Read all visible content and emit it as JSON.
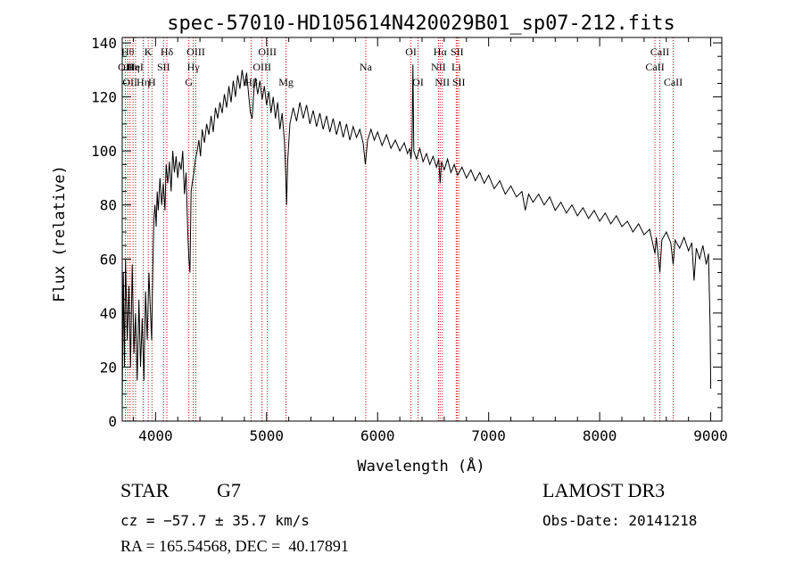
{
  "chart_data": {
    "type": "line",
    "title": "spec-57010-HD105614N420029B01_sp07-212.fits",
    "xlabel": "Wavelength (Å)",
    "ylabel": "Flux (relative)",
    "xlim": [
      3700,
      9100
    ],
    "ylim": [
      0,
      142
    ],
    "xticks": [
      4000,
      5000,
      6000,
      7000,
      8000,
      9000
    ],
    "yticks": [
      0,
      20,
      40,
      60,
      80,
      100,
      120,
      140
    ],
    "grid": false,
    "line_color": "#000000",
    "marker_color": "#cc0000",
    "series": [
      {
        "points": [
          [
            3700,
            5
          ],
          [
            3710,
            55
          ],
          [
            3720,
            20
          ],
          [
            3730,
            60
          ],
          [
            3745,
            30
          ],
          [
            3760,
            50
          ],
          [
            3775,
            20
          ],
          [
            3790,
            58
          ],
          [
            3805,
            25
          ],
          [
            3820,
            40
          ],
          [
            3835,
            15
          ],
          [
            3850,
            45
          ],
          [
            3865,
            20
          ],
          [
            3880,
            38
          ],
          [
            3895,
            15
          ],
          [
            3910,
            48
          ],
          [
            3925,
            30
          ],
          [
            3940,
            55
          ],
          [
            3955,
            40
          ],
          [
            3965,
            30
          ],
          [
            3975,
            55
          ],
          [
            3985,
            75
          ],
          [
            3995,
            80
          ],
          [
            4005,
            72
          ],
          [
            4015,
            85
          ],
          [
            4025,
            78
          ],
          [
            4040,
            90
          ],
          [
            4055,
            80
          ],
          [
            4070,
            88
          ],
          [
            4085,
            78
          ],
          [
            4095,
            95
          ],
          [
            4110,
            88
          ],
          [
            4125,
            96
          ],
          [
            4140,
            85
          ],
          [
            4155,
            100
          ],
          [
            4170,
            92
          ],
          [
            4185,
            98
          ],
          [
            4200,
            90
          ],
          [
            4215,
            96
          ],
          [
            4230,
            93
          ],
          [
            4245,
            100
          ],
          [
            4260,
            84
          ],
          [
            4275,
            92
          ],
          [
            4290,
            70
          ],
          [
            4300,
            60
          ],
          [
            4310,
            55
          ],
          [
            4320,
            85
          ],
          [
            4330,
            88
          ],
          [
            4345,
            92
          ],
          [
            4360,
            97
          ],
          [
            4375,
            100
          ],
          [
            4390,
            104
          ],
          [
            4405,
            98
          ],
          [
            4420,
            108
          ],
          [
            4440,
            103
          ],
          [
            4460,
            110
          ],
          [
            4480,
            106
          ],
          [
            4500,
            113
          ],
          [
            4520,
            107
          ],
          [
            4540,
            116
          ],
          [
            4560,
            112
          ],
          [
            4580,
            118
          ],
          [
            4600,
            114
          ],
          [
            4620,
            121
          ],
          [
            4640,
            116
          ],
          [
            4660,
            124
          ],
          [
            4680,
            118
          ],
          [
            4700,
            126
          ],
          [
            4720,
            120
          ],
          [
            4740,
            128
          ],
          [
            4760,
            123
          ],
          [
            4780,
            130
          ],
          [
            4800,
            124
          ],
          [
            4820,
            129
          ],
          [
            4840,
            120
          ],
          [
            4855,
            114
          ],
          [
            4870,
            112
          ],
          [
            4885,
            122
          ],
          [
            4900,
            127
          ],
          [
            4920,
            121
          ],
          [
            4940,
            126
          ],
          [
            4960,
            119
          ],
          [
            4980,
            124
          ],
          [
            5000,
            117
          ],
          [
            5020,
            122
          ],
          [
            5040,
            114
          ],
          [
            5060,
            120
          ],
          [
            5080,
            112
          ],
          [
            5100,
            118
          ],
          [
            5120,
            108
          ],
          [
            5140,
            114
          ],
          [
            5160,
            104
          ],
          [
            5170,
            95
          ],
          [
            5180,
            80
          ],
          [
            5190,
            96
          ],
          [
            5210,
            110
          ],
          [
            5240,
            116
          ],
          [
            5270,
            111
          ],
          [
            5300,
            118
          ],
          [
            5330,
            112
          ],
          [
            5360,
            117
          ],
          [
            5390,
            110
          ],
          [
            5420,
            115
          ],
          [
            5450,
            109
          ],
          [
            5480,
            114
          ],
          [
            5510,
            108
          ],
          [
            5540,
            113
          ],
          [
            5570,
            107
          ],
          [
            5600,
            112
          ],
          [
            5630,
            106
          ],
          [
            5660,
            111
          ],
          [
            5690,
            105
          ],
          [
            5720,
            110
          ],
          [
            5750,
            104
          ],
          [
            5780,
            109
          ],
          [
            5810,
            105
          ],
          [
            5840,
            108
          ],
          [
            5870,
            103
          ],
          [
            5890,
            95
          ],
          [
            5910,
            104
          ],
          [
            5940,
            108
          ],
          [
            5970,
            104
          ],
          [
            6000,
            107
          ],
          [
            6040,
            102
          ],
          [
            6080,
            106
          ],
          [
            6120,
            101
          ],
          [
            6160,
            104
          ],
          [
            6200,
            100
          ],
          [
            6240,
            103
          ],
          [
            6270,
            99
          ],
          [
            6290,
            101
          ],
          [
            6300,
            97
          ],
          [
            6310,
            102
          ],
          [
            6318,
            132
          ],
          [
            6326,
            100
          ],
          [
            6350,
            97
          ],
          [
            6380,
            101
          ],
          [
            6410,
            96
          ],
          [
            6440,
            99
          ],
          [
            6470,
            95
          ],
          [
            6500,
            98
          ],
          [
            6530,
            94
          ],
          [
            6550,
            97
          ],
          [
            6563,
            88
          ],
          [
            6575,
            96
          ],
          [
            6600,
            93
          ],
          [
            6630,
            97
          ],
          [
            6660,
            92
          ],
          [
            6690,
            95
          ],
          [
            6720,
            91
          ],
          [
            6760,
            94
          ],
          [
            6800,
            90
          ],
          [
            6840,
            93
          ],
          [
            6880,
            89
          ],
          [
            6920,
            92
          ],
          [
            6960,
            88
          ],
          [
            7000,
            91
          ],
          [
            7050,
            86
          ],
          [
            7100,
            89
          ],
          [
            7150,
            84
          ],
          [
            7200,
            87
          ],
          [
            7250,
            83
          ],
          [
            7300,
            85
          ],
          [
            7330,
            78
          ],
          [
            7360,
            84
          ],
          [
            7400,
            81
          ],
          [
            7450,
            84
          ],
          [
            7500,
            80
          ],
          [
            7550,
            83
          ],
          [
            7600,
            78
          ],
          [
            7650,
            81
          ],
          [
            7700,
            77
          ],
          [
            7750,
            80
          ],
          [
            7800,
            76
          ],
          [
            7850,
            79
          ],
          [
            7900,
            75
          ],
          [
            7950,
            78
          ],
          [
            8000,
            74
          ],
          [
            8050,
            77
          ],
          [
            8100,
            73
          ],
          [
            8150,
            76
          ],
          [
            8200,
            72
          ],
          [
            8250,
            74
          ],
          [
            8300,
            70
          ],
          [
            8350,
            73
          ],
          [
            8400,
            69
          ],
          [
            8450,
            71
          ],
          [
            8498,
            62
          ],
          [
            8510,
            68
          ],
          [
            8542,
            55
          ],
          [
            8560,
            67
          ],
          [
            8600,
            70
          ],
          [
            8640,
            66
          ],
          [
            8662,
            58
          ],
          [
            8680,
            67
          ],
          [
            8720,
            64
          ],
          [
            8760,
            68
          ],
          [
            8800,
            63
          ],
          [
            8830,
            66
          ],
          [
            8850,
            52
          ],
          [
            8870,
            64
          ],
          [
            8900,
            60
          ],
          [
            8930,
            65
          ],
          [
            8960,
            58
          ],
          [
            8980,
            62
          ],
          [
            8995,
            35
          ],
          [
            9000,
            12
          ]
        ]
      }
    ],
    "line_markers": [
      {
        "wavelength": 3728,
        "label": "OII",
        "row": 2
      },
      {
        "wavelength": 3750,
        "label": "Hθ",
        "row": 1
      },
      {
        "wavelength": 3770,
        "label": "OII",
        "row": 3
      },
      {
        "wavelength": 3798,
        "label": "Hη",
        "row": 2
      },
      {
        "wavelength": 3820,
        "label": "HeI",
        "row": 2
      },
      {
        "wavelength": 3889,
        "label": "Hη",
        "row": 3
      },
      {
        "wavelength": 3934,
        "label": "K",
        "row": 1
      },
      {
        "wavelength": 3968,
        "label": "H",
        "row": 3
      },
      {
        "wavelength": 4072,
        "label": "SII",
        "row": 2
      },
      {
        "wavelength": 4102,
        "label": "Hδ",
        "row": 1
      },
      {
        "wavelength": 4300,
        "label": "G",
        "row": 3
      },
      {
        "wavelength": 4340,
        "label": "Hγ",
        "row": 2
      },
      {
        "wavelength": 4363,
        "label": "OIII",
        "row": 1
      },
      {
        "wavelength": 4861,
        "label": "Hβ",
        "row": 3
      },
      {
        "wavelength": 4959,
        "label": "OIII",
        "row": 2
      },
      {
        "wavelength": 5007,
        "label": "OIII",
        "row": 1
      },
      {
        "wavelength": 5175,
        "label": "Mg",
        "row": 3
      },
      {
        "wavelength": 5893,
        "label": "Na",
        "row": 2
      },
      {
        "wavelength": 6300,
        "label": "OI",
        "row": 1
      },
      {
        "wavelength": 6364,
        "label": "OI",
        "row": 3
      },
      {
        "wavelength": 6548,
        "label": "NII",
        "row": 2
      },
      {
        "wavelength": 6563,
        "label": "Hα",
        "row": 1
      },
      {
        "wavelength": 6583,
        "label": "NII",
        "row": 3
      },
      {
        "wavelength": 6708,
        "label": "Li",
        "row": 2
      },
      {
        "wavelength": 6716,
        "label": "SII",
        "row": 1
      },
      {
        "wavelength": 6731,
        "label": "SII",
        "row": 3
      },
      {
        "wavelength": 8498,
        "label": "CaII",
        "row": 2
      },
      {
        "wavelength": 8542,
        "label": "CaII",
        "row": 1
      },
      {
        "wavelength": 8662,
        "label": "CaII",
        "row": 3
      }
    ]
  },
  "info": {
    "object_class": "STAR",
    "subclass": "G7",
    "velocity": "cz = −57.7 ± 35.7 km/s",
    "coords": "RA = 165.54568, DEC =  40.17891",
    "survey": "LAMOST DR3",
    "obs_date": "Obs-Date: 20141218"
  }
}
